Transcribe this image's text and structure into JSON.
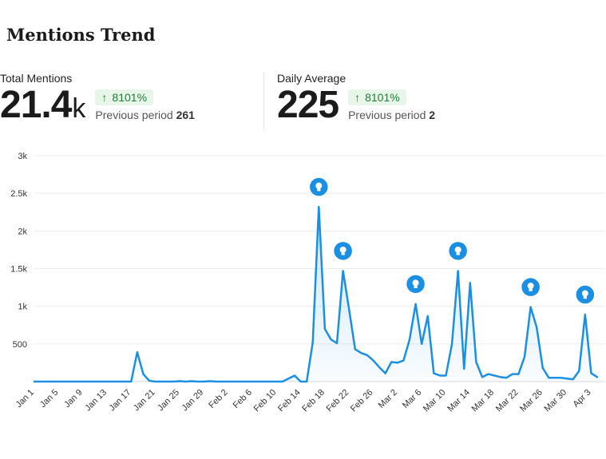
{
  "title": "Mentions Trend",
  "kpis": {
    "total": {
      "label": "Total Mentions",
      "value": "21.4",
      "unit": "k",
      "delta": "8101%",
      "prev_label": "Previous period",
      "prev_value": "261"
    },
    "daily": {
      "label": "Daily Average",
      "value": "225",
      "unit": "",
      "delta": "8101%",
      "prev_label": "Previous period",
      "prev_value": "2"
    }
  },
  "colors": {
    "line": "#1a8fe3",
    "marker": "#1a8fe3",
    "delta_bg": "#e8f6ea",
    "delta_text": "#1e7e34"
  },
  "icons": {
    "delta": "arrow-up-icon",
    "marker": "lightbulb-icon"
  },
  "chart_data": {
    "type": "area",
    "title": "",
    "xlabel": "",
    "ylabel": "",
    "ylim": [
      0,
      3000
    ],
    "yticks": [
      500,
      1000,
      1500,
      2000,
      2500,
      3000
    ],
    "ytick_labels": [
      "500",
      "1k",
      "1.5k",
      "2k",
      "2.5k",
      "3k"
    ],
    "xticks": [
      0,
      4,
      8,
      12,
      16,
      20,
      24,
      28,
      32,
      36,
      40,
      44,
      48,
      52,
      56,
      60,
      64,
      68,
      72,
      76,
      80,
      84,
      88,
      92
    ],
    "xtick_labels": [
      "Jan 1",
      "Jan 5",
      "Jan 9",
      "Jan 13",
      "Jan 17",
      "Jan 21",
      "Jan 25",
      "Jan 29",
      "Feb 2",
      "Feb 6",
      "Feb 10",
      "Feb 14",
      "Feb 18",
      "Feb 22",
      "Feb 26",
      "Mar 2",
      "Mar 6",
      "Mar 10",
      "Mar 14",
      "Mar 18",
      "Mar 22",
      "Mar 26",
      "Mar 30",
      "Apr 3"
    ],
    "grid": true,
    "series": [
      {
        "values": [
          0,
          0,
          0,
          0,
          0,
          0,
          0,
          0,
          0,
          0,
          0,
          0,
          0,
          0,
          0,
          0,
          0,
          390,
          100,
          10,
          0,
          0,
          0,
          0,
          5,
          0,
          5,
          0,
          0,
          5,
          0,
          0,
          0,
          0,
          0,
          0,
          0,
          0,
          0,
          0,
          0,
          0,
          40,
          80,
          0,
          0,
          520,
          2320,
          700,
          560,
          510,
          1470,
          960,
          430,
          380,
          350,
          280,
          190,
          110,
          260,
          250,
          280,
          560,
          1030,
          500,
          870,
          110,
          80,
          80,
          500,
          1470,
          170,
          1310,
          260,
          60,
          100,
          80,
          60,
          50,
          100,
          100,
          330,
          990,
          720,
          180,
          50,
          50,
          50,
          40,
          30,
          140,
          890,
          110,
          60
        ],
        "markers": [
          47,
          51,
          63,
          70,
          82,
          91
        ]
      }
    ]
  }
}
